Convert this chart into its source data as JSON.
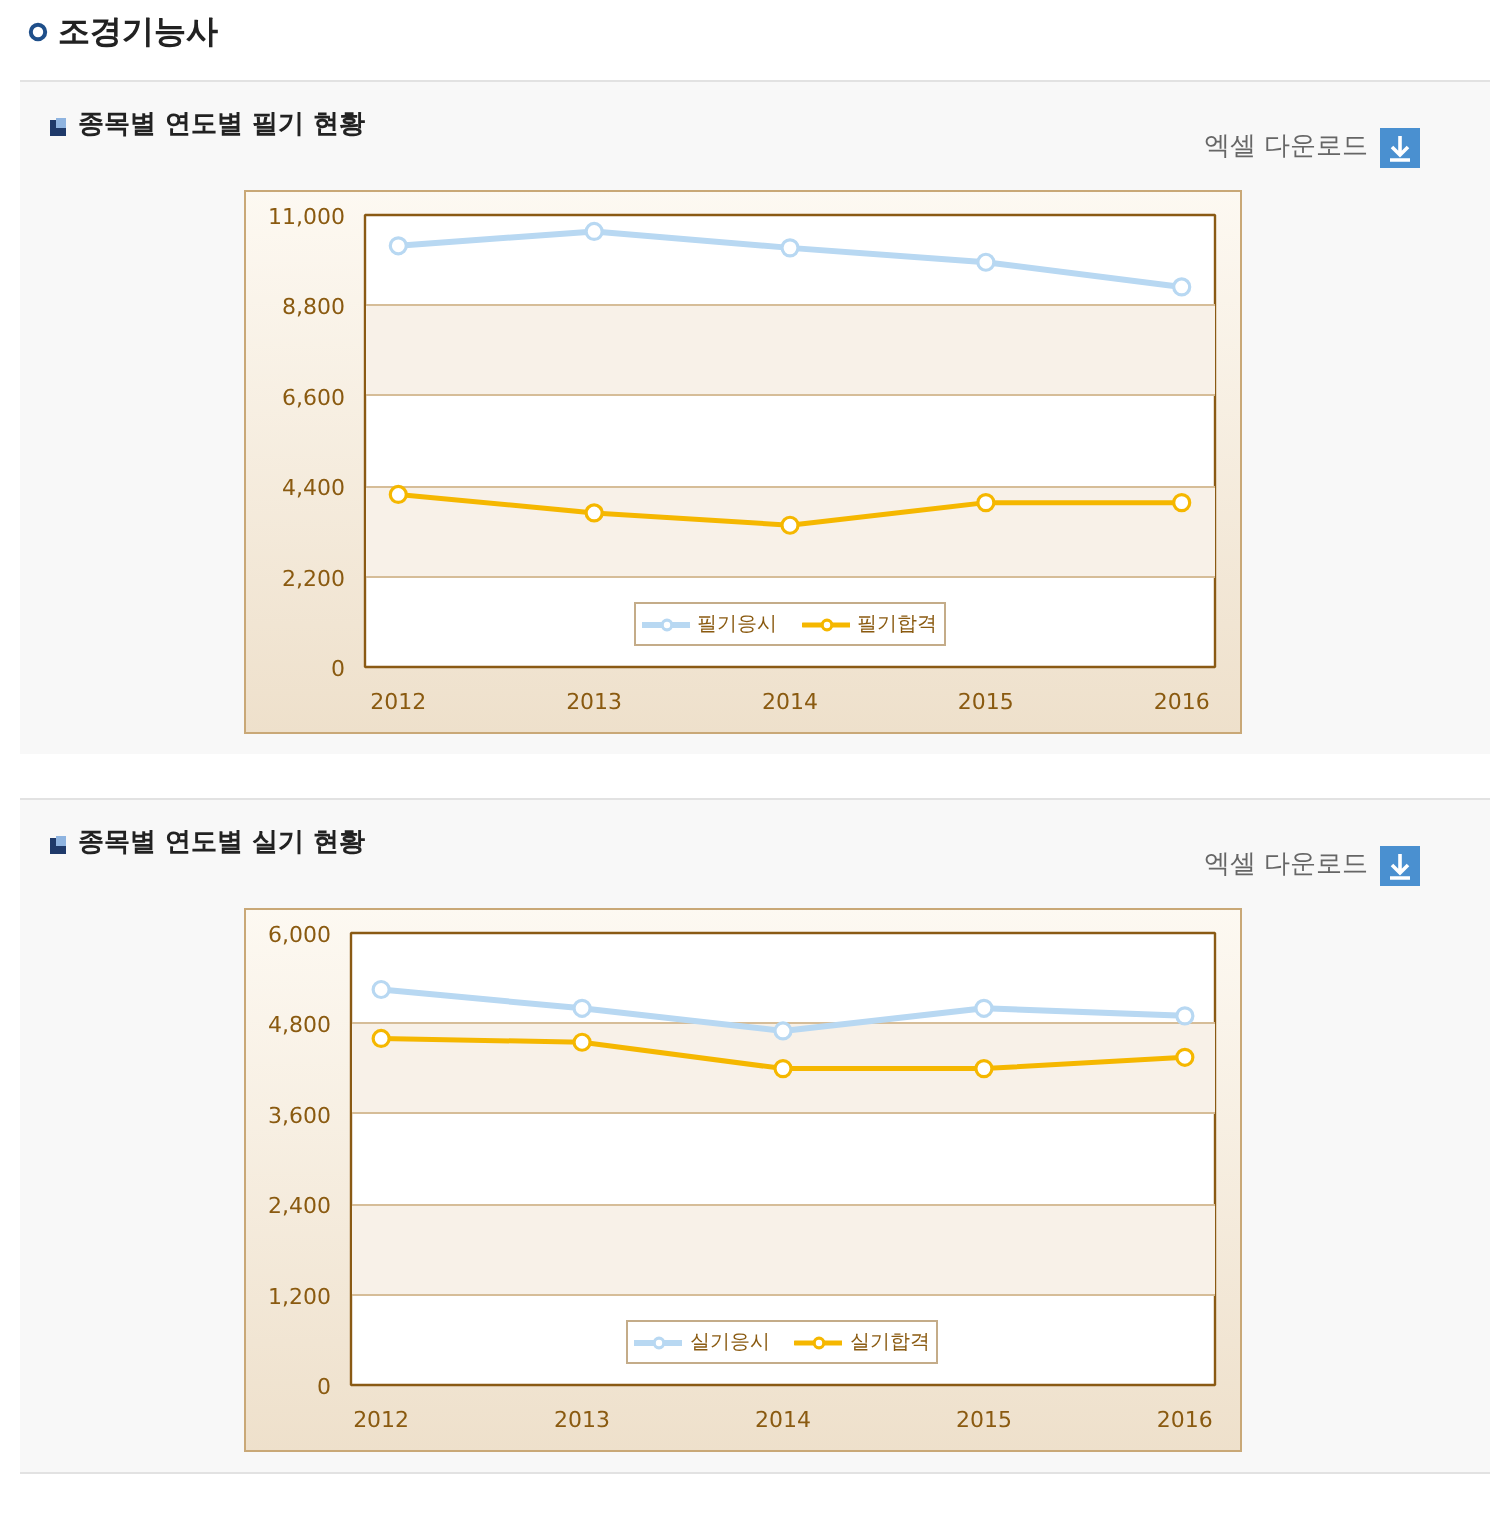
{
  "chart_data": [
    {
      "type": "line",
      "title": "종목별 연도별 필기 현황",
      "annotations": [
        "조경기능사",
        "엑셀 다운로드"
      ],
      "categories": [
        "2012",
        "2013",
        "2014",
        "2015",
        "2016"
      ],
      "series": [
        {
          "name": "필기응시",
          "color": "#b8d8f2",
          "values": [
            10250,
            10600,
            10200,
            9850,
            9250
          ]
        },
        {
          "name": "필기합격",
          "color": "#f5b700",
          "values": [
            4200,
            3750,
            3450,
            4000,
            4000
          ]
        }
      ],
      "ylim": [
        0,
        11000
      ],
      "yticks": [
        0,
        {
          "value": 2200,
          "label": "2,200"
        },
        {
          "value": 4400,
          "label": "4,400"
        },
        {
          "value": 6600,
          "label": "6,600"
        },
        {
          "value": 8800,
          "label": "8,800"
        },
        {
          "value": 11000,
          "label": "11,000"
        }
      ],
      "grid": "y",
      "legend": "bottom",
      "marker": "circle",
      "line_style": "solid"
    },
    {
      "type": "line",
      "title": "종목별 연도별 실기 현황",
      "annotations": [
        "엑셀 다운로드"
      ],
      "categories": [
        "2012",
        "2013",
        "2014",
        "2015",
        "2016"
      ],
      "series": [
        {
          "name": "실기응시",
          "color": "#b8d8f2",
          "values": [
            5250,
            5000,
            4700,
            5000,
            4900
          ]
        },
        {
          "name": "실기합격",
          "color": "#f5b700",
          "values": [
            4600,
            4550,
            4200,
            4200,
            4350
          ]
        }
      ],
      "ylim": [
        0,
        6000
      ],
      "yticks": [
        0,
        {
          "value": 1200,
          "label": "1,200"
        },
        {
          "value": 2400,
          "label": "2,400"
        },
        {
          "value": 3600,
          "label": "3,600"
        },
        {
          "value": 4800,
          "label": "4,800"
        },
        {
          "value": 6000,
          "label": "6,000"
        }
      ],
      "grid": "y",
      "legend": "bottom",
      "marker": "circle",
      "line_style": "solid"
    }
  ]
}
